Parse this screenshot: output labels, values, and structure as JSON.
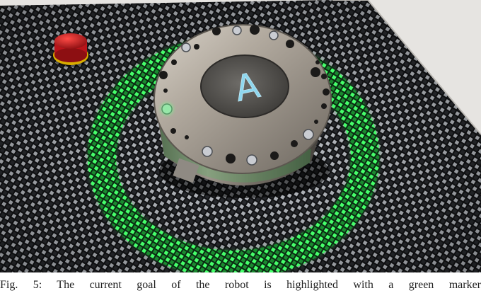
{
  "figure": {
    "caption": "Fig. 5: The current goal of the robot is highlighted with a green marker",
    "display_letter": "A",
    "colors": {
      "background_wall": "#e6e4e1",
      "mat_dark": "#121315",
      "mat_light": "#c9ccd2",
      "goal_marker": "#2fd94e",
      "robot_metal": "#a19a92",
      "screen_glyph": "#8fd7ee",
      "stop_button": "#c0181c",
      "stop_collar": "#e6b800"
    },
    "objects": {
      "robot": "circular-mobile-robot",
      "marker": "green-ring-goal-marker",
      "button": "red-emergency-stop-button"
    }
  }
}
